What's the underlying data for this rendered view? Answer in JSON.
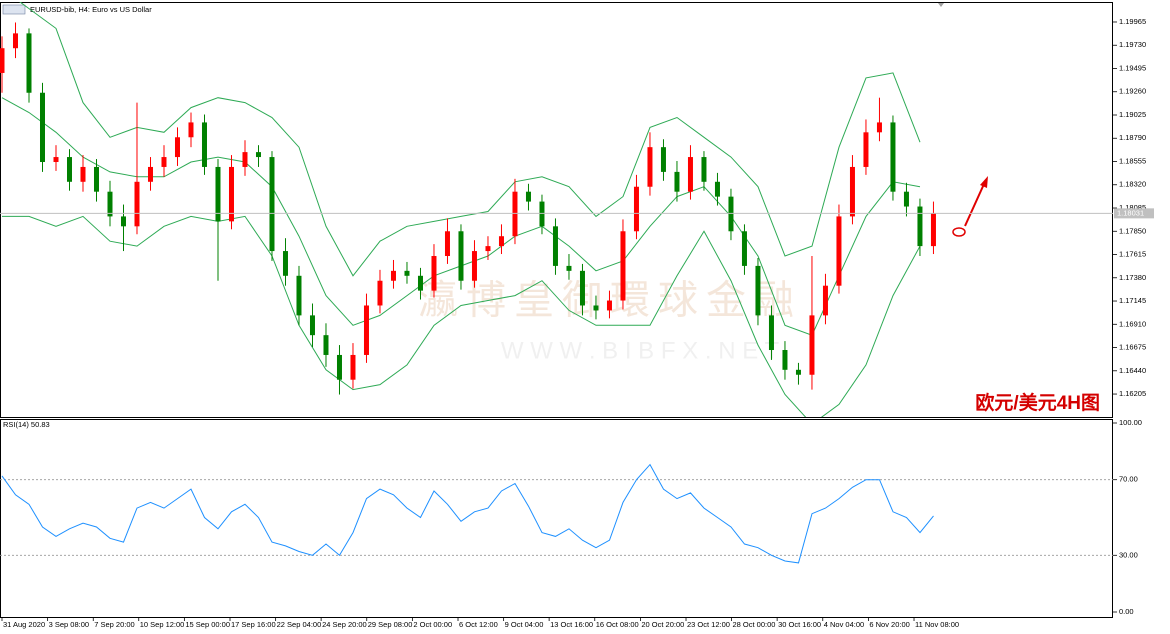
{
  "title": "EURUSD-bib, H4: Euro vs US Dollar",
  "annotation": "欧元/美元4H图",
  "watermark": [
    "瀛博皇御環球金融",
    "W W W . B I B F X . N E T"
  ],
  "chart_data": [
    {
      "type": "candlestick",
      "up_color": "#ff0000",
      "down_color": "#008000",
      "band_color": "#2eaa55",
      "xlim": [
        -0.148,
        82.3
      ],
      "ylim": [
        1.15973,
        1.20167
      ],
      "yticks": [
        {
          "value": 1.19965,
          "label": "1.19965"
        },
        {
          "value": 1.1973,
          "label": "1.19730"
        },
        {
          "value": 1.19495,
          "label": "1.19495"
        },
        {
          "value": 1.1926,
          "label": "1.19260"
        },
        {
          "value": 1.19025,
          "label": "1.19025"
        },
        {
          "value": 1.1879,
          "label": "1.18790"
        },
        {
          "value": 1.18555,
          "label": "1.18555"
        },
        {
          "value": 1.1832,
          "label": "1.18320"
        },
        {
          "value": 1.18085,
          "label": "1.18085"
        },
        {
          "value": 1.1785,
          "label": "1.17850"
        },
        {
          "value": 1.17615,
          "label": "1.17615"
        },
        {
          "value": 1.1738,
          "label": "1.17380"
        },
        {
          "value": 1.17145,
          "label": "1.17145"
        },
        {
          "value": 1.1691,
          "label": "1.16910"
        },
        {
          "value": 1.16675,
          "label": "1.16675"
        },
        {
          "value": 1.1644,
          "label": "1.16440"
        },
        {
          "value": 1.16205,
          "label": "1.16205"
        }
      ],
      "current_price": 1.18031,
      "open": [
        1.1945,
        1.197,
        1.1985,
        1.1925,
        1.1855,
        1.186,
        1.1835,
        1.185,
        1.1825,
        1.18,
        1.179,
        1.1835,
        1.185,
        1.186,
        1.188,
        1.1895,
        1.185,
        1.1795,
        1.185,
        1.1865,
        1.186,
        1.1765,
        1.174,
        1.17,
        1.168,
        1.166,
        1.1635,
        1.166,
        1.171,
        1.1735,
        1.1745,
        1.174,
        1.1725,
        1.176,
        1.1785,
        1.1735,
        1.1765,
        1.177,
        1.178,
        1.1825,
        1.1815,
        1.179,
        1.175,
        1.1745,
        1.171,
        1.1705,
        1.1715,
        1.1785,
        1.183,
        1.187,
        1.1845,
        1.1825,
        1.186,
        1.1835,
        1.182,
        1.1785,
        1.175,
        1.17,
        1.1665,
        1.1645,
        1.164,
        1.17,
        1.173,
        1.18,
        1.185,
        1.1885,
        1.1895,
        1.1825,
        1.181,
        1.177
      ],
      "high": [
        1.1982,
        1.1996,
        1.199,
        1.1935,
        1.1872,
        1.1868,
        1.1862,
        1.1858,
        1.1836,
        1.1812,
        1.1915,
        1.186,
        1.1872,
        1.189,
        1.1905,
        1.1903,
        1.1858,
        1.1862,
        1.1877,
        1.1872,
        1.1866,
        1.1778,
        1.175,
        1.1712,
        1.1692,
        1.167,
        1.1672,
        1.1722,
        1.1746,
        1.1756,
        1.1754,
        1.1748,
        1.1772,
        1.1798,
        1.1792,
        1.1776,
        1.178,
        1.1792,
        1.1838,
        1.1833,
        1.1822,
        1.1798,
        1.1762,
        1.1752,
        1.172,
        1.1725,
        1.1797,
        1.1842,
        1.1885,
        1.1878,
        1.1856,
        1.1872,
        1.1866,
        1.1844,
        1.1828,
        1.1792,
        1.1758,
        1.171,
        1.1674,
        1.1652,
        1.176,
        1.1742,
        1.1812,
        1.1862,
        1.1898,
        1.192,
        1.1902,
        1.1834,
        1.1818,
        1.1815
      ],
      "low": [
        1.1925,
        1.196,
        1.1915,
        1.1845,
        1.1846,
        1.1826,
        1.1825,
        1.1815,
        1.179,
        1.1765,
        1.1782,
        1.1826,
        1.184,
        1.1851,
        1.187,
        1.1842,
        1.1735,
        1.1787,
        1.1841,
        1.185,
        1.1755,
        1.173,
        1.169,
        1.1668,
        1.1648,
        1.162,
        1.1626,
        1.1652,
        1.1702,
        1.1727,
        1.1732,
        1.1716,
        1.1718,
        1.1752,
        1.1726,
        1.1728,
        1.1756,
        1.1762,
        1.1772,
        1.1806,
        1.1782,
        1.1741,
        1.1736,
        1.17,
        1.1696,
        1.1697,
        1.1706,
        1.1777,
        1.1821,
        1.1836,
        1.1815,
        1.1817,
        1.1826,
        1.1811,
        1.1776,
        1.1741,
        1.169,
        1.1655,
        1.1635,
        1.163,
        1.1625,
        1.1691,
        1.1722,
        1.1792,
        1.1842,
        1.1876,
        1.1816,
        1.18,
        1.176,
        1.1762
      ],
      "close": [
        1.197,
        1.1985,
        1.1925,
        1.1855,
        1.186,
        1.1835,
        1.185,
        1.1825,
        1.18,
        1.179,
        1.1835,
        1.185,
        1.186,
        1.188,
        1.1895,
        1.185,
        1.1795,
        1.185,
        1.1865,
        1.186,
        1.1765,
        1.174,
        1.17,
        1.168,
        1.166,
        1.1635,
        1.166,
        1.171,
        1.1735,
        1.1745,
        1.174,
        1.1725,
        1.176,
        1.1785,
        1.1735,
        1.1765,
        1.177,
        1.178,
        1.1825,
        1.1815,
        1.179,
        1.175,
        1.1745,
        1.171,
        1.1705,
        1.1715,
        1.1785,
        1.183,
        1.187,
        1.1845,
        1.1825,
        1.186,
        1.1835,
        1.182,
        1.1785,
        1.175,
        1.17,
        1.1665,
        1.1645,
        1.164,
        1.17,
        1.173,
        1.18,
        1.185,
        1.1885,
        1.1895,
        1.1825,
        1.181,
        1.177,
        1.1803
      ],
      "band_x": [
        0,
        2,
        4,
        6,
        8,
        10,
        12,
        14,
        16,
        18,
        20,
        22,
        24,
        26,
        28,
        30,
        32,
        34,
        36,
        38,
        40,
        42,
        44,
        46,
        48,
        50,
        52,
        54,
        56,
        58,
        60,
        62,
        64,
        66,
        68
      ],
      "bands": [
        {
          "values": [
            1.203,
            1.201,
            1.199,
            1.1915,
            1.188,
            1.189,
            1.1885,
            1.191,
            1.192,
            1.1915,
            1.19,
            1.187,
            1.179,
            1.174,
            1.1775,
            1.179,
            1.1795,
            1.18,
            1.1805,
            1.1835,
            1.184,
            1.183,
            1.18,
            1.182,
            1.189,
            1.19,
            1.188,
            1.186,
            1.183,
            1.176,
            1.177,
            1.187,
            1.194,
            1.1945,
            1.1875
          ]
        },
        {
          "values": [
            1.192,
            1.1905,
            1.1885,
            1.186,
            1.1845,
            1.184,
            1.184,
            1.1855,
            1.186,
            1.1855,
            1.183,
            1.178,
            1.172,
            1.169,
            1.17,
            1.172,
            1.174,
            1.175,
            1.176,
            1.178,
            1.179,
            1.177,
            1.1745,
            1.1755,
            1.179,
            1.182,
            1.183,
            1.18,
            1.176,
            1.169,
            1.168,
            1.174,
            1.18,
            1.1835,
            1.183
          ]
        },
        {
          "values": [
            1.18,
            1.18,
            1.179,
            1.18,
            1.1775,
            1.177,
            1.179,
            1.18,
            1.1795,
            1.18,
            1.176,
            1.169,
            1.1645,
            1.1625,
            1.163,
            1.165,
            1.169,
            1.171,
            1.1715,
            1.172,
            1.1735,
            1.1705,
            1.169,
            1.169,
            1.169,
            1.174,
            1.1785,
            1.1735,
            1.167,
            1.162,
            1.159,
            1.161,
            1.165,
            1.172,
            1.177
          ]
        }
      ]
    },
    {
      "type": "line",
      "label": "RSI(14) 50.83",
      "color": "#1e90ff",
      "xlim": [
        -0.148,
        82.3
      ],
      "ylim": [
        0,
        100
      ],
      "yticks": [
        {
          "value": 100,
          "label": "100.00"
        },
        {
          "value": 70,
          "label": "70.00"
        },
        {
          "value": 30,
          "label": "30.00"
        },
        {
          "value": 0,
          "label": "0.00"
        }
      ],
      "levels": [
        70,
        30
      ],
      "xticks": [
        {
          "value": 0,
          "label": "31 Aug 2020"
        },
        {
          "value": 3.38,
          "label": "3 Sep 08:00"
        },
        {
          "value": 6.76,
          "label": "7 Sep 20:00"
        },
        {
          "value": 10.13,
          "label": "10 Sep 12:00"
        },
        {
          "value": 13.51,
          "label": "15 Sep 00:00"
        },
        {
          "value": 16.89,
          "label": "17 Sep 16:00"
        },
        {
          "value": 20.27,
          "label": "22 Sep 04:00"
        },
        {
          "value": 23.64,
          "label": "24 Sep 20:00"
        },
        {
          "value": 27.02,
          "label": "29 Sep 08:00"
        },
        {
          "value": 30.4,
          "label": "2 Oct 00:00"
        },
        {
          "value": 33.78,
          "label": "6 Oct 12:00"
        },
        {
          "value": 37.16,
          "label": "9 Oct 04:00"
        },
        {
          "value": 40.53,
          "label": "13 Oct 16:00"
        },
        {
          "value": 43.91,
          "label": "16 Oct 08:00"
        },
        {
          "value": 47.29,
          "label": "20 Oct 20:00"
        },
        {
          "value": 50.67,
          "label": "23 Oct 12:00"
        },
        {
          "value": 54.04,
          "label": "28 Oct 00:00"
        },
        {
          "value": 57.42,
          "label": "30 Oct 16:00"
        },
        {
          "value": 60.8,
          "label": "4 Nov 04:00"
        },
        {
          "value": 64.18,
          "label": "6 Nov 20:00"
        },
        {
          "value": 67.56,
          "label": "11 Nov 08:00"
        }
      ],
      "values": [
        72,
        62,
        57,
        45,
        40,
        44,
        47,
        45,
        39,
        37,
        55,
        58,
        55,
        60,
        65,
        50,
        44,
        53,
        57,
        50,
        37,
        35,
        32,
        30,
        36,
        30,
        42,
        60,
        65,
        62,
        55,
        50,
        64,
        57,
        48,
        53,
        55,
        64,
        68,
        56,
        42,
        40,
        44,
        38,
        34,
        38,
        58,
        70,
        78,
        65,
        60,
        63,
        55,
        50,
        45,
        36,
        34,
        30,
        27,
        26,
        52,
        55,
        60,
        66,
        70,
        70,
        53,
        50,
        42,
        50.83
      ]
    }
  ]
}
